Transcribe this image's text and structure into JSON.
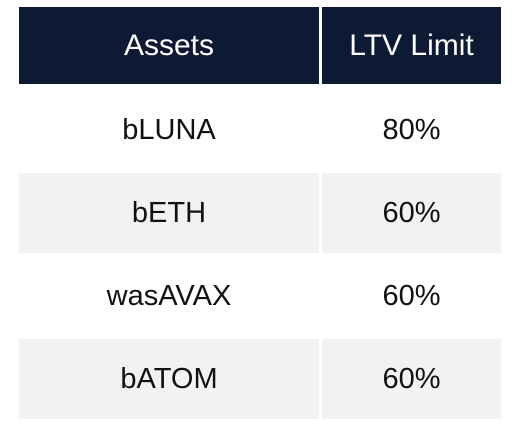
{
  "table": {
    "headers": [
      "Assets",
      "LTV Limit"
    ],
    "rows": [
      {
        "asset": "bLUNA",
        "ltv": "80%"
      },
      {
        "asset": "bETH",
        "ltv": "60%"
      },
      {
        "asset": "wasAVAX",
        "ltv": "60%"
      },
      {
        "asset": "bATOM",
        "ltv": "60%"
      }
    ]
  },
  "colors": {
    "header_bg": "#0c1a33",
    "header_text": "#ffffff",
    "stripe_bg": "#f2f2f2",
    "text": "#111111"
  }
}
